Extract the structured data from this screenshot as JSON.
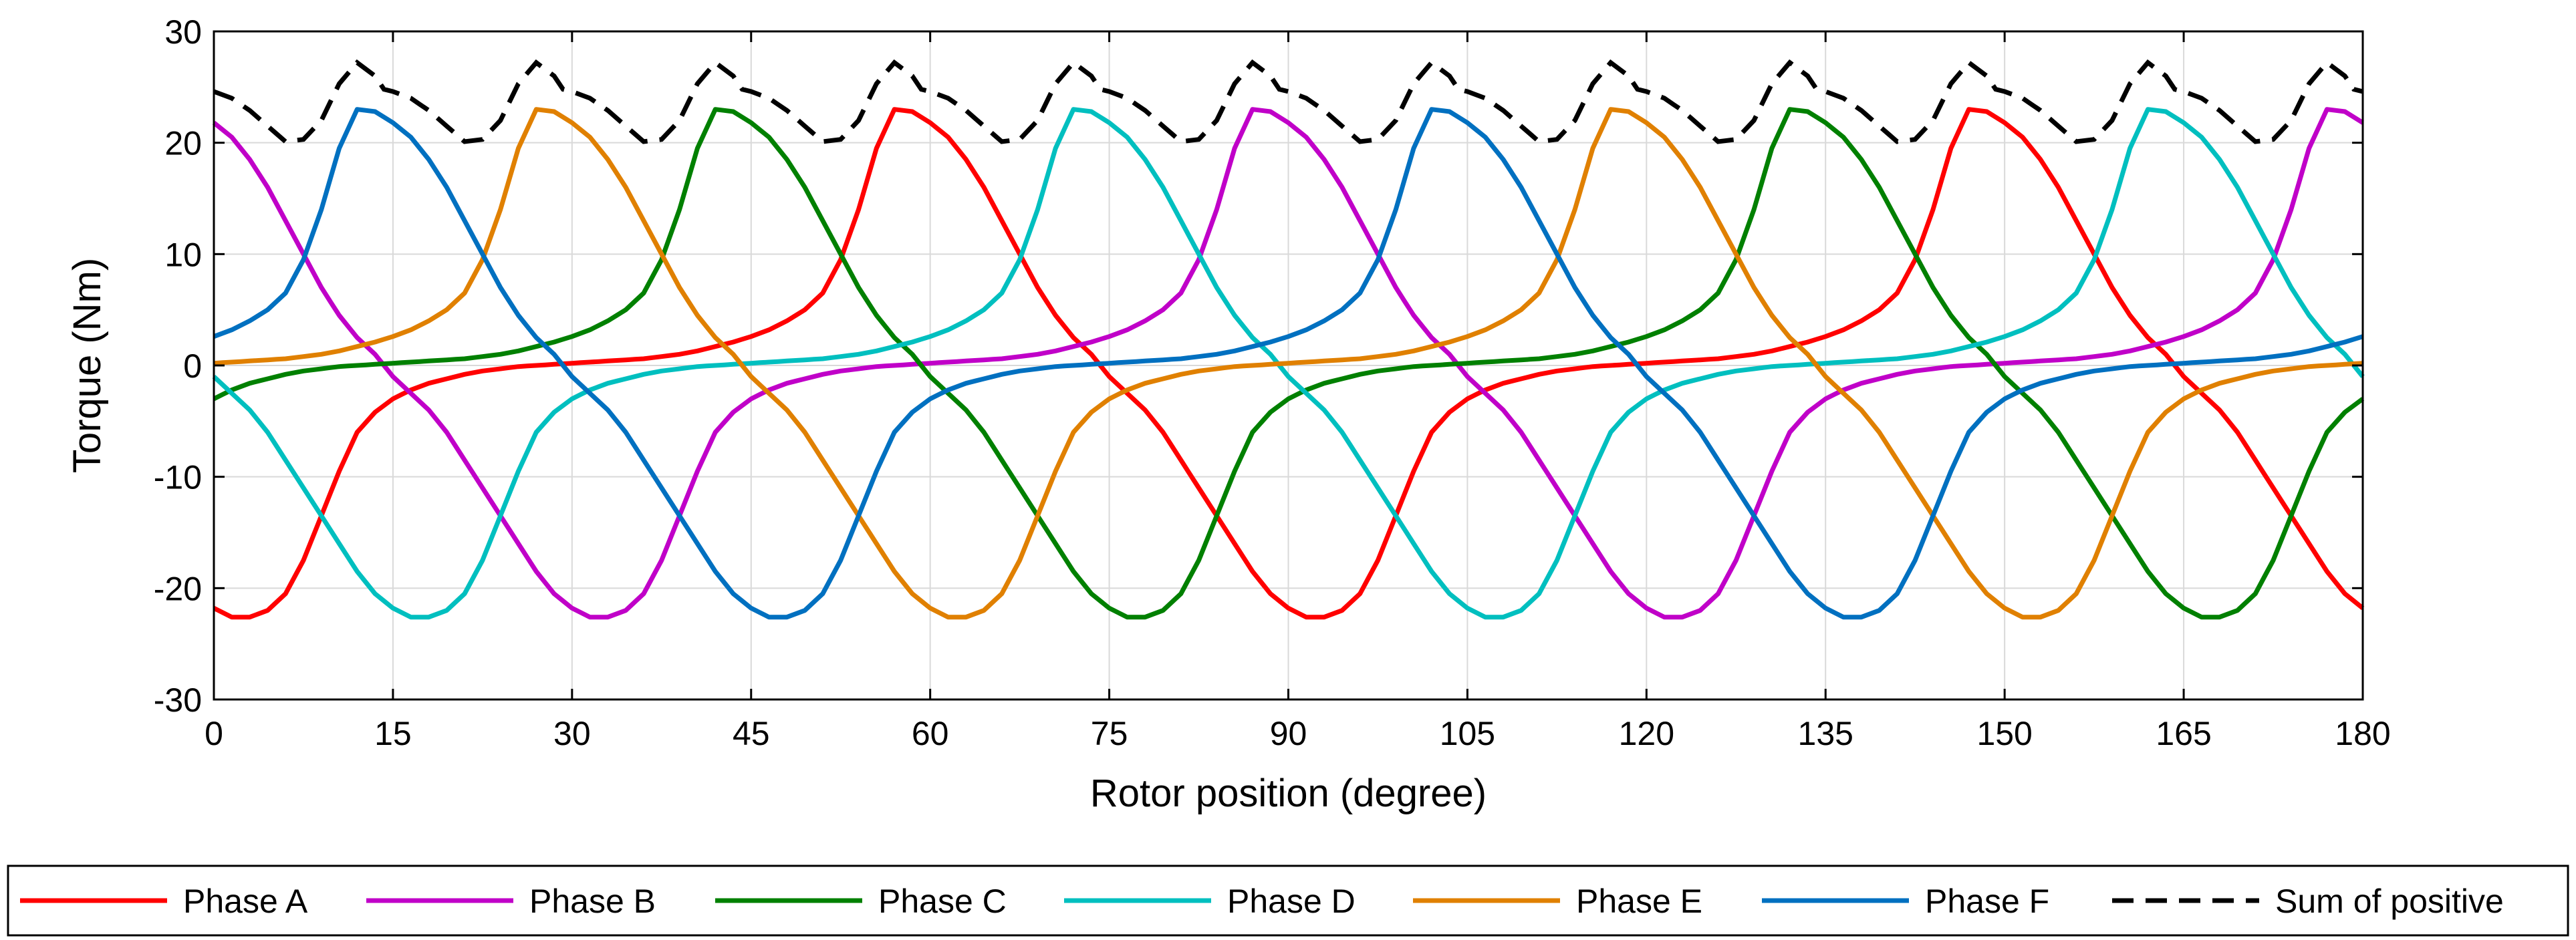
{
  "chart_data": {
    "type": "line",
    "title": "",
    "xlabel": "Rotor position (degree)",
    "ylabel": "Torque (Nm)",
    "xlim": [
      0,
      180
    ],
    "ylim": [
      -30,
      30
    ],
    "xticks": [
      0,
      15,
      30,
      45,
      60,
      75,
      90,
      105,
      120,
      135,
      150,
      165,
      180
    ],
    "yticks": [
      -30,
      -20,
      -10,
      0,
      10,
      20,
      30
    ],
    "xtick_labels": [
      "0",
      "15",
      "30",
      "45",
      "60",
      "75",
      "90",
      "105",
      "120",
      "135",
      "150",
      "165",
      "180"
    ],
    "ytick_labels": [
      "-30",
      "-20",
      "-10",
      "0",
      "10",
      "20",
      "30"
    ],
    "grid": true,
    "legend_position": "bottom (outside)",
    "period_deg": 90,
    "phase_shift_deg": 15,
    "waveform_base": {
      "description": "one 90-degree electrical period, sampled every 1.5 degrees, for Phase A shifted so that its positive peak sits at 0",
      "x": [
        0,
        1.5,
        3,
        4.5,
        6,
        7.5,
        9,
        10.5,
        12,
        13.5,
        15,
        16.5,
        18,
        19.5,
        21,
        22.5,
        24,
        25.5,
        27,
        28.5,
        30,
        31.5,
        33,
        34.5,
        36,
        37.5,
        39,
        40.5,
        42,
        43.5,
        45,
        46.5,
        48,
        49.5,
        51,
        52.5,
        54,
        55.5,
        57,
        58.5,
        60,
        61.5,
        63,
        64.5,
        66,
        67.5,
        69,
        70.5,
        72,
        73.5,
        75,
        76.5,
        78,
        79.5,
        81,
        82.5,
        84,
        85.5,
        87,
        88.5
      ],
      "y": [
        23,
        22.8,
        21.8,
        20.5,
        18.5,
        16,
        13,
        10,
        7,
        4.5,
        2.5,
        1,
        -1,
        -2.5,
        -4,
        -6,
        -8.5,
        -11,
        -13.5,
        -16,
        -18.5,
        -20.5,
        -21.8,
        -22.6,
        -22.6,
        -22,
        -20.5,
        -17.5,
        -13.5,
        -9.5,
        -6,
        -4.2,
        -3,
        -2.2,
        -1.6,
        -1.2,
        -0.8,
        -0.5,
        -0.3,
        -0.1,
        0,
        0.1,
        0.2,
        0.3,
        0.4,
        0.5,
        0.6,
        0.8,
        1,
        1.3,
        1.7,
        2.1,
        2.6,
        3.2,
        4,
        5,
        6.5,
        9.5,
        14,
        19.5
      ]
    },
    "series": [
      {
        "name": "Phase A",
        "color": "#ff0000",
        "peak_deg": 57,
        "dash": "solid"
      },
      {
        "name": "Phase B",
        "color": "#c000c8",
        "peak_deg": 87,
        "dash": "solid"
      },
      {
        "name": "Phase C",
        "color": "#008000",
        "peak_deg": 42,
        "dash": "solid"
      },
      {
        "name": "Phase D",
        "color": "#00bfbf",
        "peak_deg": 72,
        "dash": "solid"
      },
      {
        "name": "Phase E",
        "color": "#e08000",
        "peak_deg": 27,
        "dash": "solid"
      },
      {
        "name": "Phase F",
        "color": "#0070c0",
        "peak_deg": 12,
        "dash": "solid"
      },
      {
        "name": "Sum of positive",
        "color": "#000000",
        "dash": "dashed",
        "derived": "sum of positive values of all phases"
      }
    ]
  }
}
